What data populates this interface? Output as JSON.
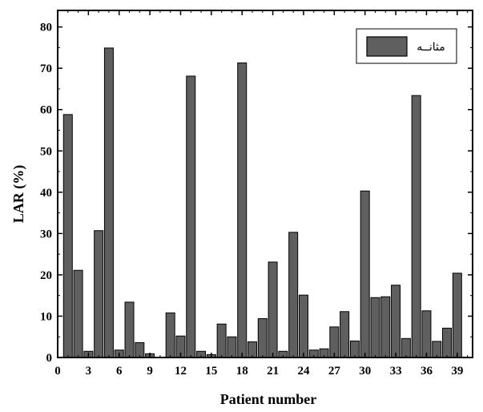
{
  "chart_data": {
    "type": "bar",
    "x": [
      1,
      2,
      3,
      4,
      5,
      6,
      7,
      8,
      9,
      10,
      11,
      12,
      13,
      14,
      15,
      16,
      17,
      18,
      19,
      20,
      21,
      22,
      23,
      24,
      25,
      26,
      27,
      28,
      29,
      30,
      31,
      32,
      33,
      34,
      35,
      36,
      37,
      38,
      39
    ],
    "series": [
      {
        "name": "مثانــه",
        "values": [
          58.8,
          21.1,
          1.5,
          30.7,
          74.9,
          1.8,
          13.4,
          3.6,
          0.9,
          0.1,
          10.8,
          5.2,
          68.1,
          1.5,
          0.7,
          8.1,
          5.0,
          71.3,
          3.8,
          9.4,
          23.1,
          1.5,
          30.3,
          15.1,
          1.8,
          2.1,
          7.4,
          11.1,
          4.0,
          40.3,
          14.5,
          14.7,
          17.5,
          4.6,
          63.4,
          11.3,
          3.9,
          7.1,
          20.4
        ]
      }
    ],
    "xlabel": "Patient number",
    "ylabel": "LAR (%)",
    "xlim": [
      0,
      40.5
    ],
    "ylim": [
      0,
      84
    ],
    "xticks": [
      0,
      3,
      6,
      9,
      12,
      15,
      18,
      21,
      24,
      27,
      30,
      33,
      36,
      39
    ],
    "yticks": [
      0,
      10,
      20,
      30,
      40,
      50,
      60,
      70,
      80
    ],
    "grid": false,
    "legend_position": "top-right",
    "colors": {
      "bar_fill": "#5f5f5f",
      "bar_stroke": "#000000",
      "axis": "#000000"
    }
  }
}
